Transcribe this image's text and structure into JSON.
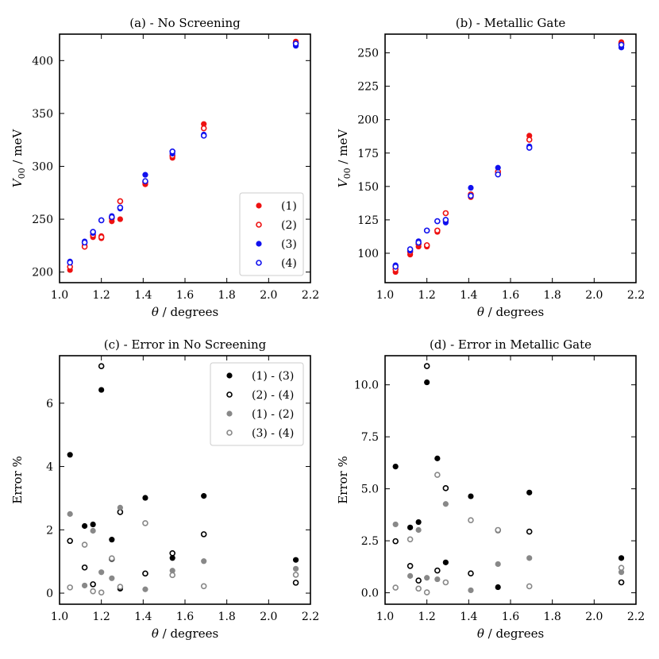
{
  "colors": {
    "red": "#ee1111",
    "blue": "#1111ee",
    "black": "#000000",
    "gray": "#888888"
  },
  "chart_data": [
    {
      "type": "scatter",
      "title": "(a) - No Screening",
      "xlabel_sym": "θ",
      "xlabel_text": " / degrees",
      "ylabel_sym": "V",
      "ylabel_sub": "00",
      "ylabel_text": " / meV",
      "xlim": [
        1.0,
        2.2
      ],
      "ylim": [
        190,
        425
      ],
      "xticks": [
        1.0,
        1.2,
        1.4,
        1.6,
        1.8,
        2.0,
        2.2
      ],
      "xtick_labels": [
        "1.0",
        "1.2",
        "1.4",
        "1.6",
        "1.8",
        "2.0",
        "2.2"
      ],
      "yticks": [
        200,
        250,
        300,
        350,
        400
      ],
      "ytick_labels": [
        "200",
        "250",
        "300",
        "350",
        "400"
      ],
      "legend_position": "bottom-right",
      "series": [
        {
          "name": "(1)",
          "color": "#ee1111",
          "filled": true,
          "x": [
            1.05,
            1.12,
            1.16,
            1.2,
            1.2,
            1.25,
            1.29,
            1.41,
            1.54,
            1.69,
            2.13
          ],
          "y": [
            202,
            225,
            233,
            232,
            234,
            248,
            250,
            283,
            308,
            340,
            418
          ]
        },
        {
          "name": "(2)",
          "color": "#ee1111",
          "filled": false,
          "x": [
            1.05,
            1.12,
            1.16,
            1.2,
            1.25,
            1.29,
            1.41,
            1.54,
            1.69,
            2.13
          ],
          "y": [
            205,
            224,
            235,
            233,
            251,
            267,
            285,
            310,
            336,
            417
          ]
        },
        {
          "name": "(3)",
          "color": "#1111ee",
          "filled": true,
          "x": [
            1.05,
            1.12,
            1.16,
            1.2,
            1.25,
            1.29,
            1.41,
            1.54,
            1.69,
            2.13
          ],
          "y": [
            210,
            229,
            237,
            249,
            253,
            260,
            292,
            312,
            330,
            414
          ]
        },
        {
          "name": "(4)",
          "color": "#1111ee",
          "filled": false,
          "x": [
            1.05,
            1.12,
            1.16,
            1.2,
            1.25,
            1.29,
            1.41,
            1.54,
            1.69,
            2.13
          ],
          "y": [
            209,
            228,
            238,
            249,
            252,
            261,
            286,
            314,
            329,
            416
          ]
        }
      ]
    },
    {
      "type": "scatter",
      "title": "(b) - Metallic Gate",
      "xlabel_sym": "θ",
      "xlabel_text": " / degrees",
      "ylabel_sym": "V",
      "ylabel_sub": "00",
      "ylabel_text": " / meV",
      "xlim": [
        1.0,
        2.2
      ],
      "ylim": [
        78,
        264
      ],
      "xticks": [
        1.0,
        1.2,
        1.4,
        1.6,
        1.8,
        2.0,
        2.2
      ],
      "xtick_labels": [
        "1.0",
        "1.2",
        "1.4",
        "1.6",
        "1.8",
        "2.0",
        "2.2"
      ],
      "yticks": [
        100,
        125,
        150,
        175,
        200,
        225,
        250
      ],
      "ytick_labels": [
        "100",
        "125",
        "150",
        "175",
        "200",
        "225",
        "250"
      ],
      "legend_position": "none",
      "series": [
        {
          "name": "(1)",
          "color": "#ee1111",
          "filled": true,
          "x": [
            1.05,
            1.12,
            1.16,
            1.2,
            1.2,
            1.25,
            1.29,
            1.41,
            1.54,
            1.69,
            2.13
          ],
          "y": [
            86,
            99,
            105,
            105,
            106,
            116,
            124,
            142,
            160,
            188,
            258
          ]
        },
        {
          "name": "(2)",
          "color": "#ee1111",
          "filled": false,
          "x": [
            1.05,
            1.12,
            1.16,
            1.2,
            1.25,
            1.29,
            1.41,
            1.54,
            1.69,
            2.13
          ],
          "y": [
            88,
            101,
            107,
            106,
            117,
            130,
            144,
            161,
            185,
            257
          ]
        },
        {
          "name": "(3)",
          "color": "#1111ee",
          "filled": true,
          "x": [
            1.05,
            1.12,
            1.16,
            1.2,
            1.25,
            1.29,
            1.41,
            1.54,
            1.69,
            2.13
          ],
          "y": [
            91,
            102,
            109,
            117,
            124,
            123,
            149,
            164,
            180,
            254
          ]
        },
        {
          "name": "(4)",
          "color": "#1111ee",
          "filled": false,
          "x": [
            1.05,
            1.12,
            1.16,
            1.2,
            1.25,
            1.29,
            1.41,
            1.54,
            1.69,
            2.13
          ],
          "y": [
            90,
            103,
            108,
            117,
            124,
            125,
            143,
            159,
            179,
            256
          ]
        }
      ]
    },
    {
      "type": "scatter",
      "title": "(c) - Error in No Screening",
      "xlabel_sym": "θ",
      "xlabel_text": " / degrees",
      "ylabel_sym": "",
      "ylabel_sub": "",
      "ylabel_text": "Error %",
      "xlim": [
        1.0,
        2.2
      ],
      "ylim": [
        -0.35,
        7.5
      ],
      "xticks": [
        1.0,
        1.2,
        1.4,
        1.6,
        1.8,
        2.0,
        2.2
      ],
      "xtick_labels": [
        "1.0",
        "1.2",
        "1.4",
        "1.6",
        "1.8",
        "2.0",
        "2.2"
      ],
      "yticks": [
        0,
        2,
        4,
        6
      ],
      "ytick_labels": [
        "0",
        "2",
        "4",
        "6"
      ],
      "legend_position": "top-right",
      "series": [
        {
          "name": "(1) - (3)",
          "color": "#000000",
          "filled": true,
          "x": [
            1.05,
            1.12,
            1.16,
            1.2,
            1.25,
            1.29,
            1.41,
            1.54,
            1.69,
            2.13
          ],
          "y": [
            4.37,
            2.12,
            2.17,
            6.42,
            1.69,
            0.14,
            3.01,
            1.11,
            3.07,
            1.05
          ]
        },
        {
          "name": "(2) - (4)",
          "color": "#000000",
          "filled": false,
          "x": [
            1.05,
            1.12,
            1.16,
            1.2,
            1.25,
            1.29,
            1.41,
            1.54,
            1.69,
            2.13
          ],
          "y": [
            1.65,
            0.81,
            0.28,
            7.17,
            1.08,
            2.56,
            0.62,
            1.26,
            1.86,
            0.33
          ]
        },
        {
          "name": "(1) - (2)",
          "color": "#888888",
          "filled": true,
          "x": [
            1.05,
            1.12,
            1.16,
            1.2,
            1.25,
            1.29,
            1.41,
            1.54,
            1.69,
            2.13
          ],
          "y": [
            2.5,
            0.24,
            1.97,
            0.66,
            0.47,
            2.7,
            0.12,
            0.71,
            1.01,
            0.77
          ]
        },
        {
          "name": "(3) - (4)",
          "color": "#888888",
          "filled": false,
          "x": [
            1.05,
            1.12,
            1.16,
            1.2,
            1.25,
            1.29,
            1.41,
            1.54,
            1.69,
            2.13
          ],
          "y": [
            0.18,
            1.53,
            0.06,
            0.02,
            1.1,
            0.2,
            2.21,
            0.57,
            0.22,
            0.58
          ]
        }
      ]
    },
    {
      "type": "scatter",
      "title": "(d) - Error in Metallic Gate",
      "xlabel_sym": "θ",
      "xlabel_text": " / degrees",
      "ylabel_sym": "",
      "ylabel_sub": "",
      "ylabel_text": "Error %",
      "xlim": [
        1.0,
        2.2
      ],
      "ylim": [
        -0.55,
        11.4
      ],
      "xticks": [
        1.0,
        1.2,
        1.4,
        1.6,
        1.8,
        2.0,
        2.2
      ],
      "xtick_labels": [
        "1.0",
        "1.2",
        "1.4",
        "1.6",
        "1.8",
        "2.0",
        "2.2"
      ],
      "yticks": [
        0,
        2.5,
        5,
        7.5,
        10
      ],
      "ytick_labels": [
        "0.0",
        "2.5",
        "5.0",
        "7.5",
        "10.0"
      ],
      "legend_position": "none",
      "series": [
        {
          "name": "(1) - (3)",
          "color": "#000000",
          "filled": true,
          "x": [
            1.05,
            1.12,
            1.16,
            1.2,
            1.25,
            1.29,
            1.41,
            1.54,
            1.69,
            2.13
          ],
          "y": [
            6.07,
            3.14,
            3.4,
            10.12,
            6.46,
            1.46,
            4.64,
            0.27,
            4.82,
            1.67
          ]
        },
        {
          "name": "(2) - (4)",
          "color": "#000000",
          "filled": false,
          "x": [
            1.05,
            1.12,
            1.16,
            1.2,
            1.25,
            1.29,
            1.41,
            1.54,
            1.69,
            2.13
          ],
          "y": [
            2.48,
            1.29,
            0.59,
            10.9,
            1.07,
            5.03,
            0.93,
            3.01,
            2.94,
            0.5
          ]
        },
        {
          "name": "(1) - (2)",
          "color": "#888888",
          "filled": true,
          "x": [
            1.05,
            1.12,
            1.16,
            1.2,
            1.25,
            1.29,
            1.41,
            1.54,
            1.69,
            2.13
          ],
          "y": [
            3.29,
            0.81,
            3.02,
            0.72,
            0.65,
            4.27,
            0.12,
            1.38,
            1.67,
            0.99
          ]
        },
        {
          "name": "(3) - (4)",
          "color": "#888888",
          "filled": false,
          "x": [
            1.05,
            1.12,
            1.16,
            1.2,
            1.25,
            1.29,
            1.41,
            1.54,
            1.69,
            2.13
          ],
          "y": [
            0.25,
            2.57,
            0.2,
            0.02,
            5.67,
            0.5,
            3.49,
            3.02,
            0.31,
            1.2
          ]
        }
      ]
    }
  ]
}
